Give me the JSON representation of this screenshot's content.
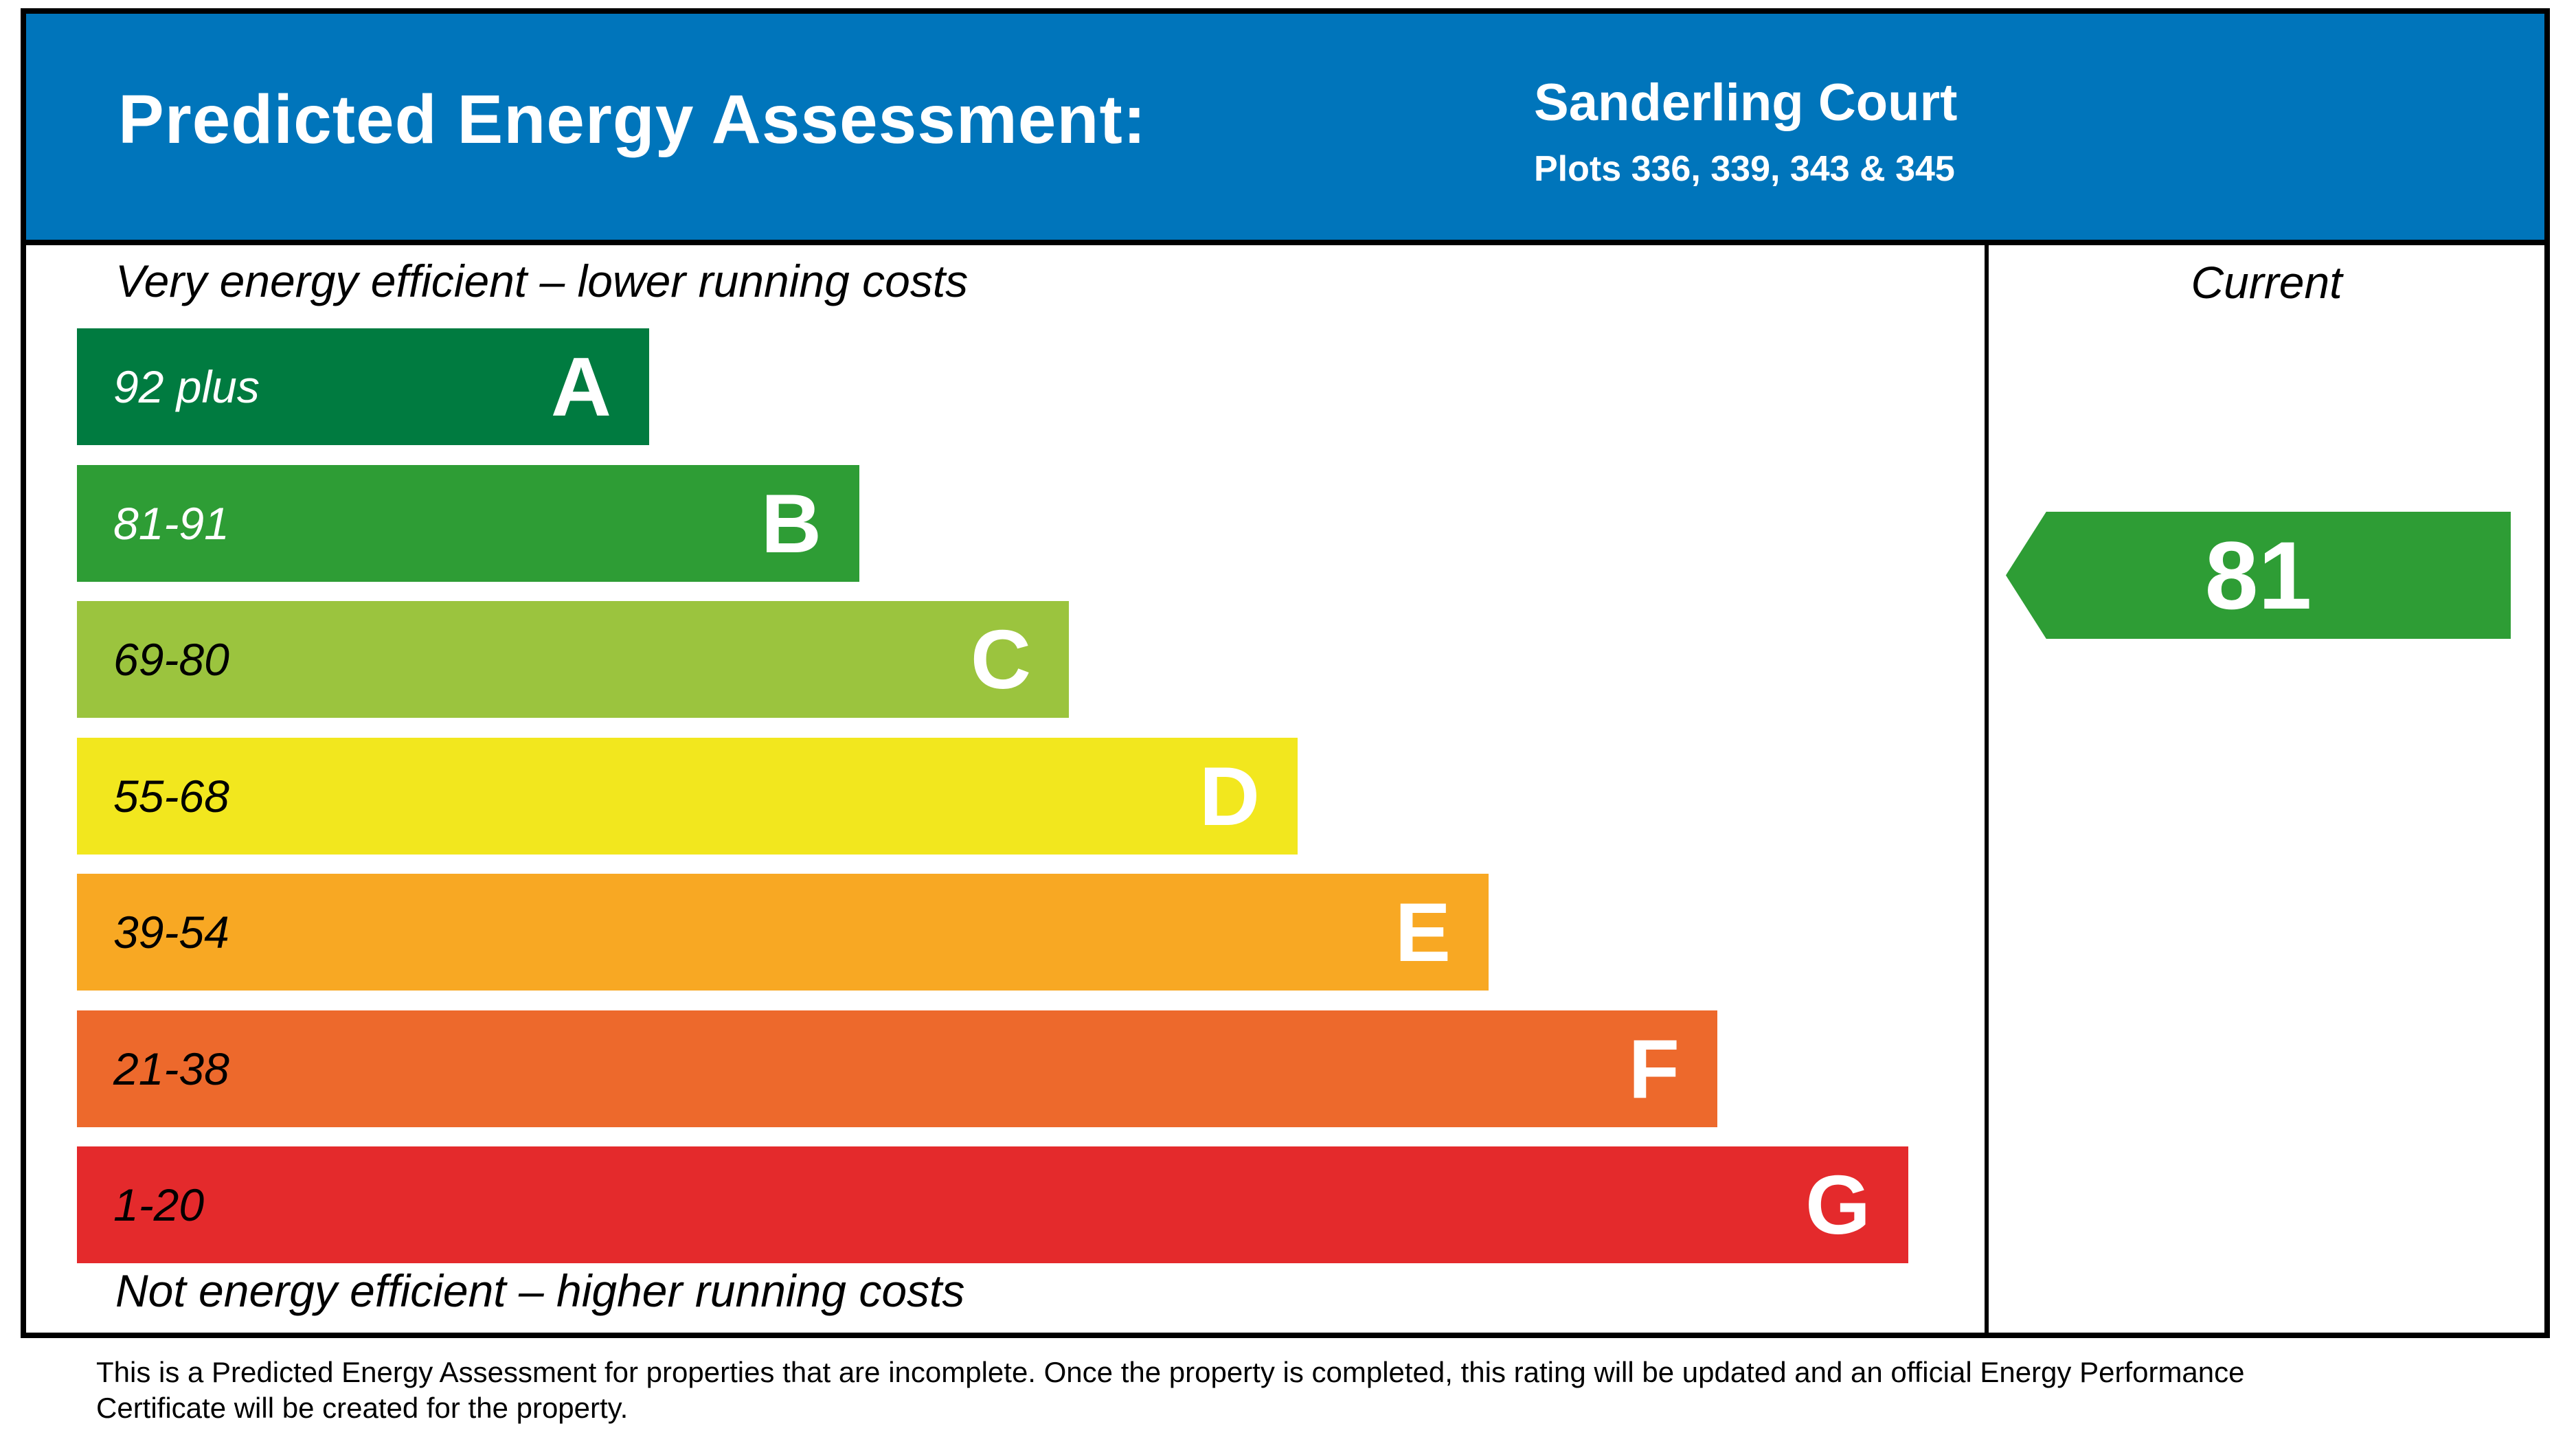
{
  "header": {
    "title": "Predicted Energy Assessment:",
    "property_name": "Sanderling Court",
    "plots": "Plots 336, 339, 343 & 345",
    "banner_color": "#0075BB"
  },
  "chart": {
    "top_label": "Very energy efficient – lower running costs",
    "bottom_label": "Not energy efficient – higher running costs",
    "current_label": "Current",
    "bands": [
      {
        "letter": "A",
        "range": "92 plus",
        "color": "#007B40",
        "text_color": "#FFFFFF"
      },
      {
        "letter": "B",
        "range": "81-91",
        "color": "#2E9D35",
        "text_color": "#FFFFFF"
      },
      {
        "letter": "C",
        "range": "69-80",
        "color": "#9BC43E",
        "text_color": "#000000"
      },
      {
        "letter": "D",
        "range": "55-68",
        "color": "#F2E71E",
        "text_color": "#000000"
      },
      {
        "letter": "E",
        "range": "39-54",
        "color": "#F8A823",
        "text_color": "#000000"
      },
      {
        "letter": "F",
        "range": "21-38",
        "color": "#ED692C",
        "text_color": "#000000"
      },
      {
        "letter": "G",
        "range": "1-20",
        "color": "#E42A2C",
        "text_color": "#000000"
      }
    ],
    "current_rating": {
      "value": "81",
      "band": "B",
      "arrow_color": "#2E9D35",
      "text_color": "#FFFFFF"
    }
  },
  "footer": {
    "line1": "This is a Predicted Energy Assessment for properties that are incomplete. Once the property is completed, this rating will be updated and an official Energy Performance",
    "line2": "Certificate will be created for the property."
  },
  "chart_data": {
    "type": "bar",
    "title": "Predicted Energy Assessment: Sanderling Court — Plots 336, 339, 343 & 345",
    "categories": [
      "A (92 plus)",
      "B (81-91)",
      "C (69-80)",
      "D (55-68)",
      "E (39-54)",
      "F (21-38)",
      "G (1-20)"
    ],
    "values": [
      30,
      41,
      52,
      64,
      74,
      86,
      96
    ],
    "value_meaning": "relative bar length as percent of rating column width",
    "bar_colors": [
      "#007B40",
      "#2E9D35",
      "#9BC43E",
      "#F2E71E",
      "#F8A823",
      "#ED692C",
      "#E42A2C"
    ],
    "annotations": [
      {
        "label": "Current",
        "value": 81,
        "band": "B",
        "arrow_color": "#2E9D35"
      }
    ],
    "xlabel": "",
    "ylabel": "",
    "legend_position": "none",
    "grid": false
  }
}
